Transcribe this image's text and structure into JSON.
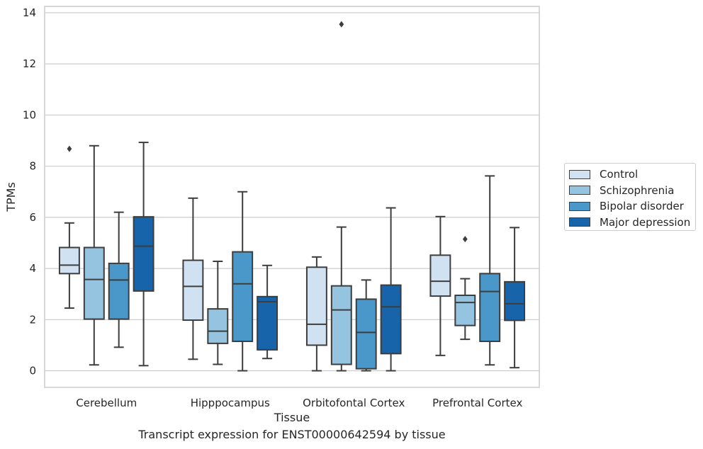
{
  "chart_data": {
    "type": "box",
    "caption": "Transcript expression for ENST00000642594 by tissue",
    "xlabel": "Tissue",
    "ylabel": "TPMs",
    "ylim": [
      -0.65,
      14.25
    ],
    "yticks": [
      0,
      2,
      4,
      6,
      8,
      10,
      12,
      14
    ],
    "grid": "y",
    "legend_position": "right",
    "categories": [
      "Cerebellum",
      "Hipppocampus",
      "Orbitofontal Cortex",
      "Prefrontal Cortex"
    ],
    "series": [
      {
        "name": "Control",
        "color": "#d0e1f2",
        "boxes": [
          {
            "whislo": 2.45,
            "q1": 3.8,
            "med": 4.13,
            "q3": 4.82,
            "whishi": 5.78,
            "fliers": [
              8.68
            ]
          },
          {
            "whislo": 0.45,
            "q1": 1.98,
            "med": 3.3,
            "q3": 4.32,
            "whishi": 6.75,
            "fliers": []
          },
          {
            "whislo": 0.0,
            "q1": 1.0,
            "med": 1.82,
            "q3": 4.05,
            "whishi": 4.45,
            "fliers": []
          },
          {
            "whislo": 0.6,
            "q1": 2.92,
            "med": 3.5,
            "q3": 4.52,
            "whishi": 6.03,
            "fliers": []
          }
        ]
      },
      {
        "name": "Schizophrenia",
        "color": "#94c4df",
        "boxes": [
          {
            "whislo": 0.23,
            "q1": 2.02,
            "med": 3.57,
            "q3": 4.82,
            "whishi": 8.8,
            "fliers": []
          },
          {
            "whislo": 0.25,
            "q1": 1.07,
            "med": 1.55,
            "q3": 2.42,
            "whishi": 4.28,
            "fliers": []
          },
          {
            "whislo": 0.0,
            "q1": 0.25,
            "med": 2.38,
            "q3": 3.32,
            "whishi": 5.62,
            "fliers": [
              13.55
            ]
          },
          {
            "whislo": 1.23,
            "q1": 1.77,
            "med": 2.67,
            "q3": 2.95,
            "whishi": 3.6,
            "fliers": [
              5.15
            ]
          }
        ]
      },
      {
        "name": "Bipolar disorder",
        "color": "#4a98c9",
        "boxes": [
          {
            "whislo": 0.92,
            "q1": 2.02,
            "med": 3.55,
            "q3": 4.2,
            "whishi": 6.2,
            "fliers": []
          },
          {
            "whislo": 0.0,
            "q1": 1.15,
            "med": 3.4,
            "q3": 4.65,
            "whishi": 7.0,
            "fliers": []
          },
          {
            "whislo": 0.0,
            "q1": 0.08,
            "med": 1.5,
            "q3": 2.8,
            "whishi": 3.55,
            "fliers": []
          },
          {
            "whislo": 0.23,
            "q1": 1.15,
            "med": 3.1,
            "q3": 3.8,
            "whishi": 7.62,
            "fliers": []
          }
        ]
      },
      {
        "name": "Major depression",
        "color": "#1764ab",
        "boxes": [
          {
            "whislo": 0.2,
            "q1": 3.12,
            "med": 4.87,
            "q3": 6.02,
            "whishi": 8.93,
            "fliers": []
          },
          {
            "whislo": 0.48,
            "q1": 0.82,
            "med": 2.7,
            "q3": 2.9,
            "whishi": 4.12,
            "fliers": []
          },
          {
            "whislo": 0.0,
            "q1": 0.67,
            "med": 2.5,
            "q3": 3.35,
            "whishi": 6.37,
            "fliers": []
          },
          {
            "whislo": 0.12,
            "q1": 1.97,
            "med": 2.62,
            "q3": 3.48,
            "whishi": 5.6,
            "fliers": []
          }
        ]
      }
    ]
  }
}
